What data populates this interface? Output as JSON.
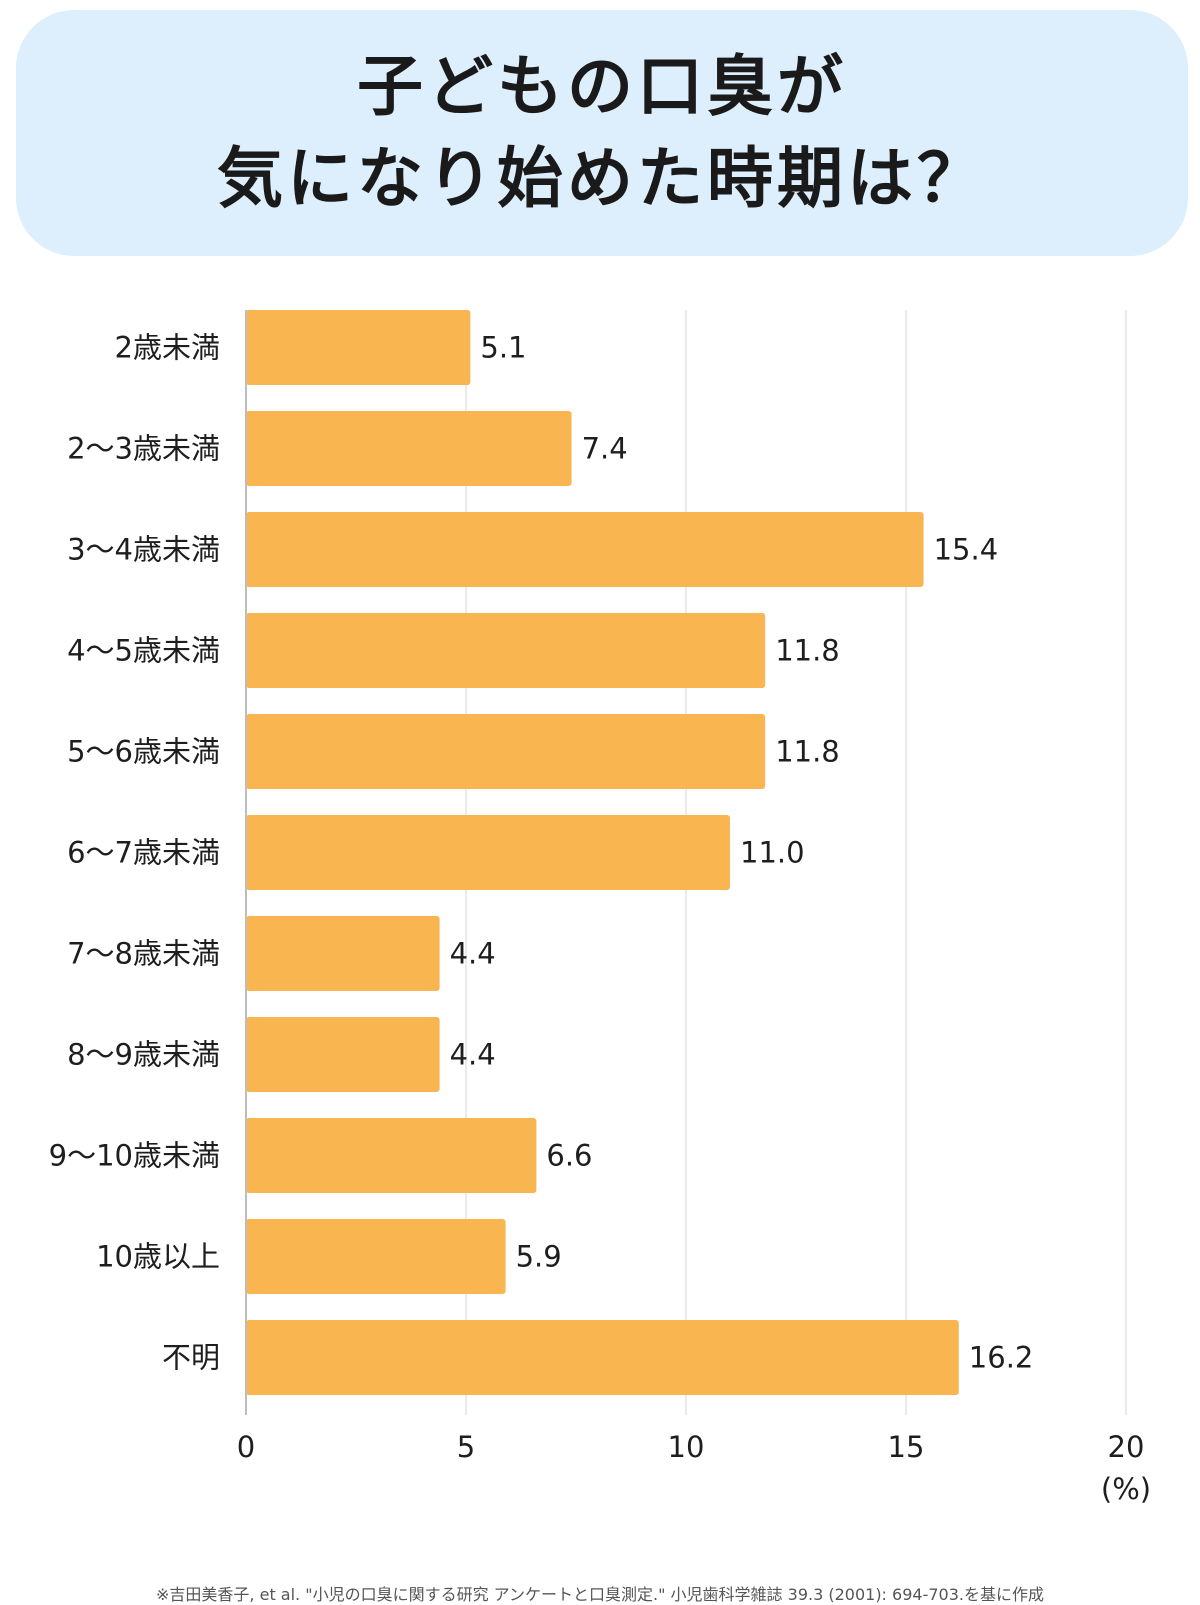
{
  "title": {
    "line1": "子どもの口臭が",
    "line2": "気になり始めた時期は？"
  },
  "chart_data": {
    "type": "bar",
    "orientation": "horizontal",
    "categories": [
      "2歳未満",
      "2〜3歳未満",
      "3〜4歳未満",
      "4〜5歳未満",
      "5〜6歳未満",
      "6〜7歳未満",
      "7〜8歳未満",
      "8〜9歳未満",
      "9〜10歳未満",
      "10歳以上",
      "不明"
    ],
    "values": [
      5.1,
      7.4,
      15.4,
      11.8,
      11.8,
      11.0,
      4.4,
      4.4,
      6.6,
      5.9,
      16.2
    ],
    "value_labels": [
      "5.1",
      "7.4",
      "15.4",
      "11.8",
      "11.8",
      "11.0",
      "4.4",
      "4.4",
      "6.6",
      "5.9",
      "16.2"
    ],
    "xlim": [
      0,
      20
    ],
    "xticks": [
      0,
      5,
      10,
      15,
      20
    ],
    "xtick_labels": [
      "0",
      "5",
      "10",
      "15",
      "20"
    ],
    "unit": "(%)",
    "grid": "vertical",
    "legend": "none",
    "bar_color": "#f9b650",
    "grid_color": "#e3e3e3",
    "axis_color": "#bdbdbd"
  },
  "source": "※吉田美香子, et al. \"小児の口臭に関する研究 アンケートと口臭測定.\" 小児歯科学雑誌 39.3 (2001): 694-703.を基に作成",
  "colors": {
    "title_panel": "#ddeffc",
    "text": "#1e1e1e"
  }
}
